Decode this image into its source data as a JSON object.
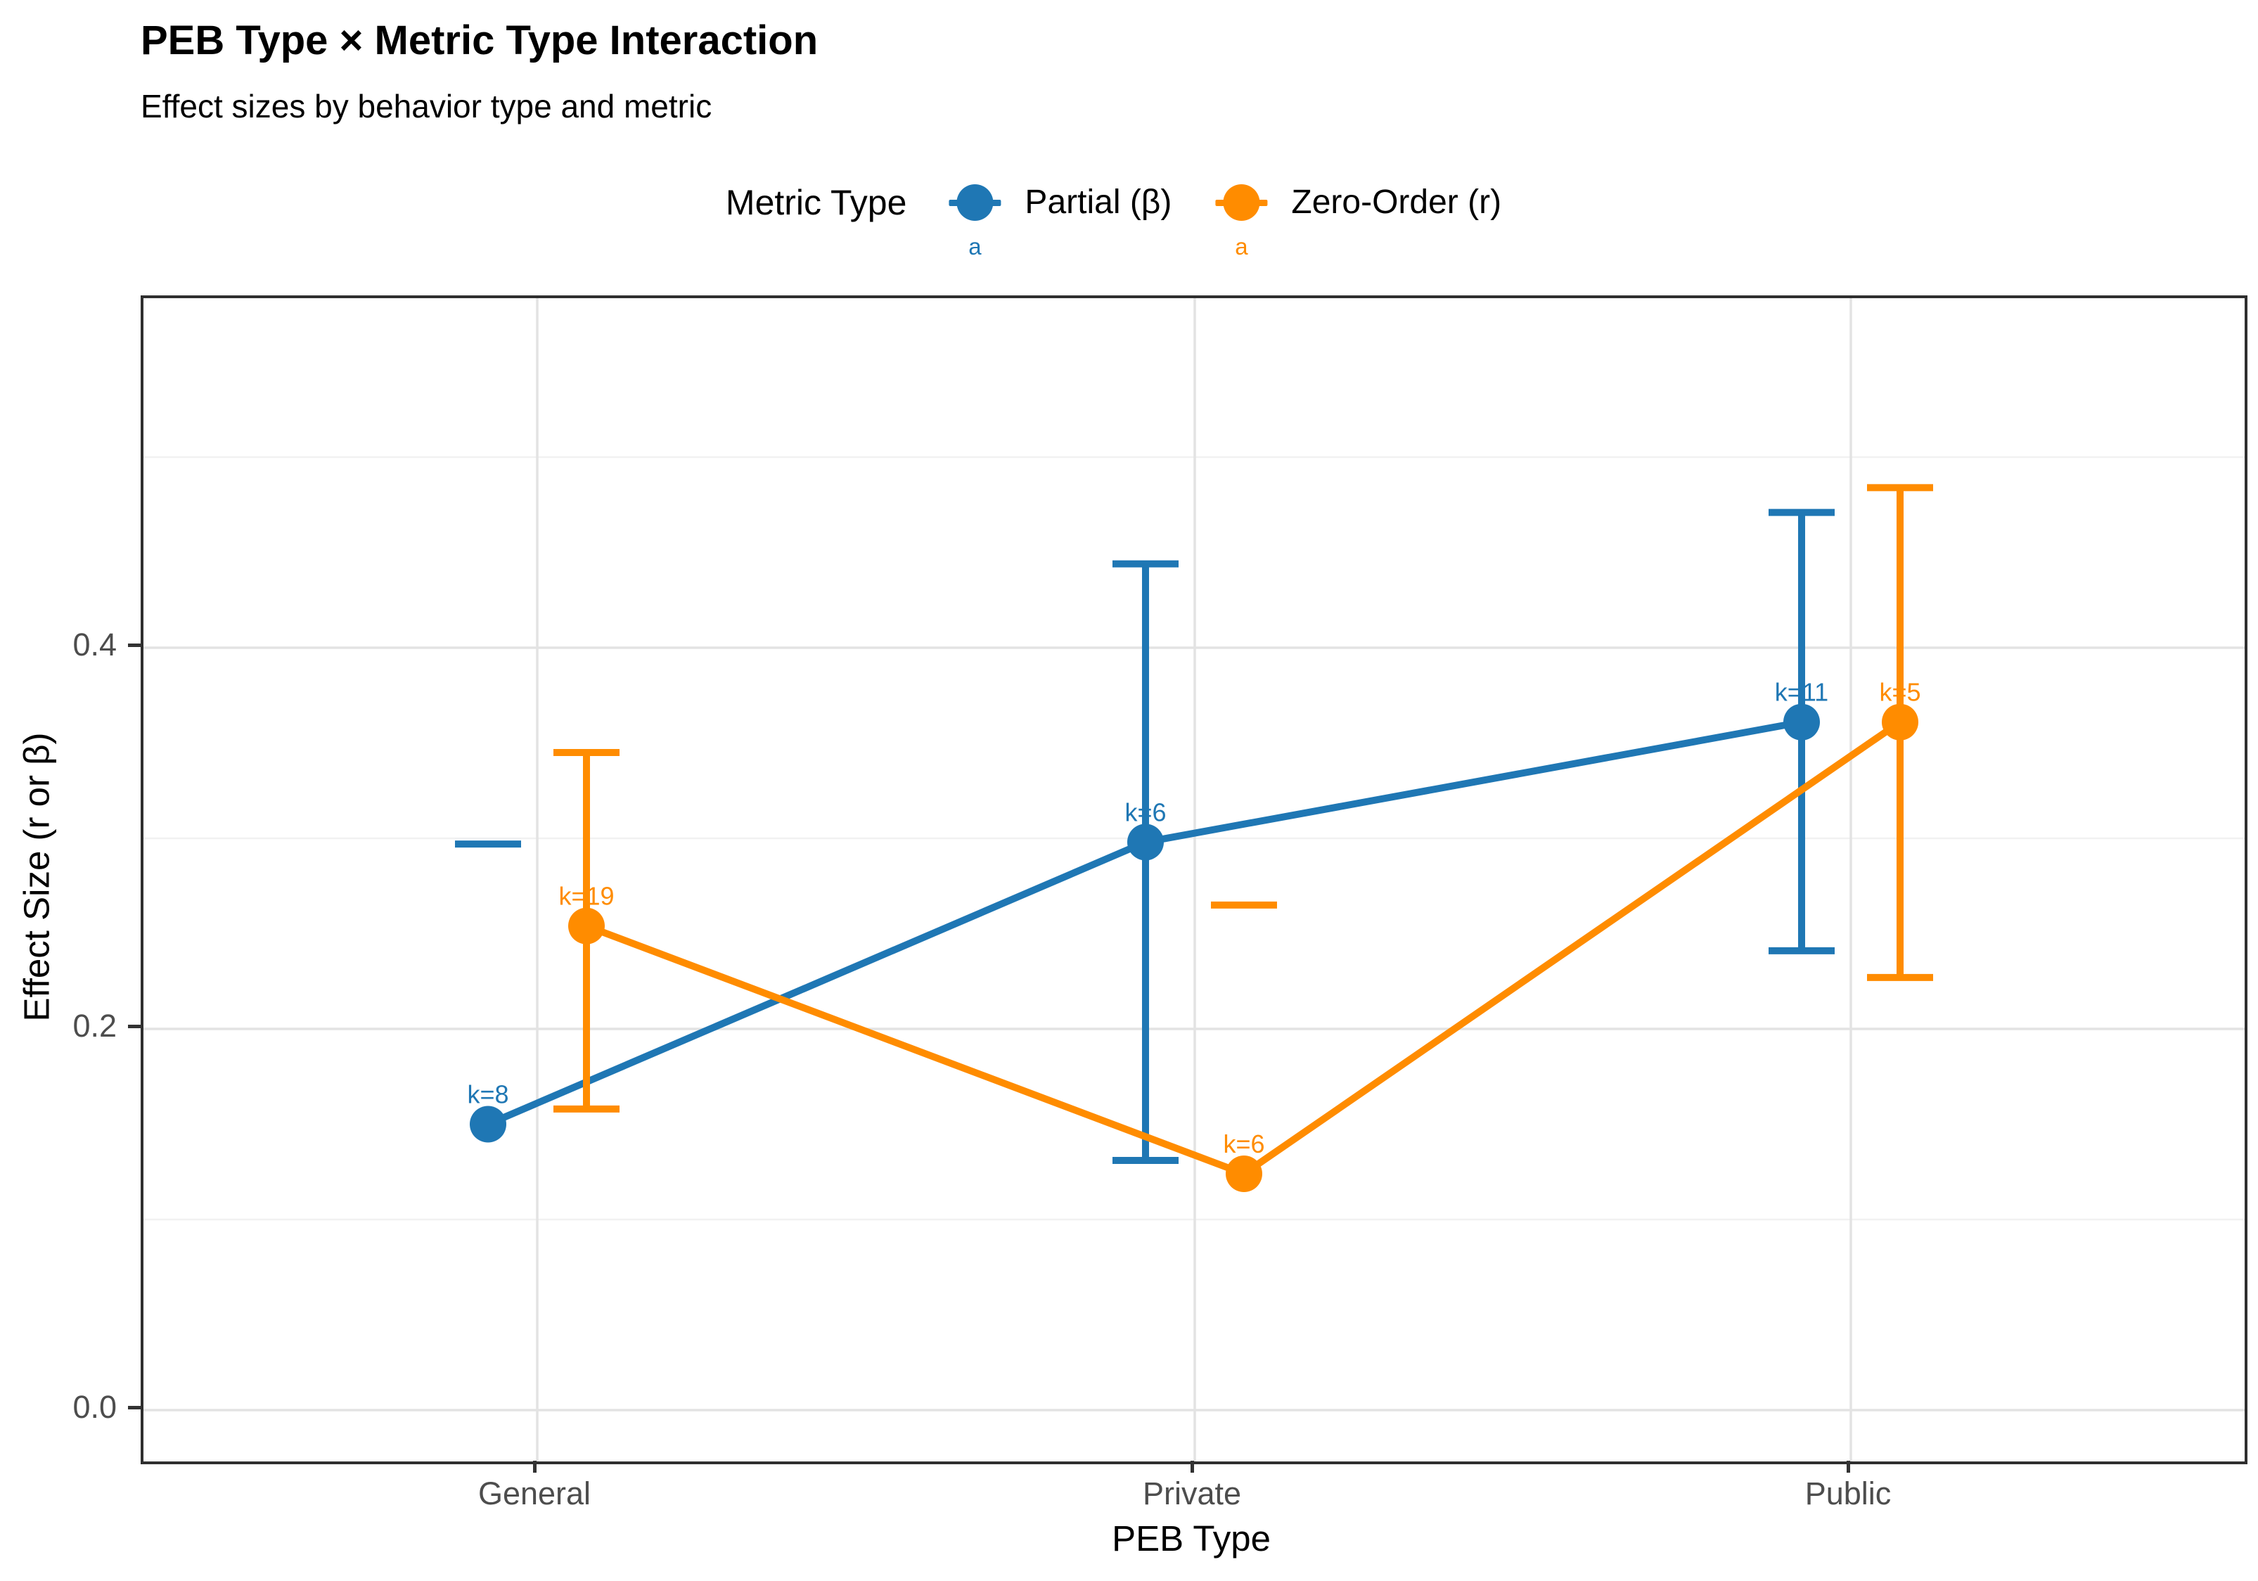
{
  "title": "PEB Type × Metric Type Interaction",
  "subtitle": "Effect sizes by behavior type and metric",
  "legend": {
    "title": "Metric Type",
    "entries": [
      {
        "label": "Partial (β)",
        "color": "#1F77B4",
        "key_letter": "a"
      },
      {
        "label": "Zero-Order (r)",
        "color": "#FF8C00",
        "key_letter": "a"
      }
    ]
  },
  "axes": {
    "x_title": "PEB Type",
    "y_title": "Effect Size (r or β)",
    "y_tick_labels": [
      "0.0",
      "0.2",
      "0.4"
    ]
  },
  "chart_data": {
    "type": "line",
    "title": "PEB Type × Metric Type Interaction",
    "subtitle": "Effect sizes by behavior type and metric",
    "xlabel": "PEB Type",
    "ylabel": "Effect Size (r or β)",
    "categories": [
      "General",
      "Private",
      "Public"
    ],
    "ylim": [
      -0.03,
      0.58
    ],
    "yticks": [
      0.0,
      0.2,
      0.4
    ],
    "yticks_minor": [
      0.1,
      0.3,
      0.5
    ],
    "grid": true,
    "legend_position": "top",
    "legend_title": "Metric Type",
    "series": [
      {
        "name": "Partial (β)",
        "color": "#1F77B4",
        "values": [
          0.15,
          0.298,
          0.361
        ],
        "ci_lower": [
          null,
          0.131,
          0.241
        ],
        "ci_upper": [
          null,
          0.444,
          0.471
        ],
        "dash_marker": [
          0.297,
          null,
          null
        ],
        "k_labels": [
          "k=8",
          "k=6",
          "k=11"
        ]
      },
      {
        "name": "Zero-Order (r)",
        "color": "#FF8C00",
        "values": [
          0.254,
          0.124,
          0.361
        ],
        "ci_lower": [
          0.158,
          null,
          0.227
        ],
        "ci_upper": [
          0.345,
          null,
          0.484
        ],
        "dash_marker": [
          null,
          0.265,
          null
        ],
        "k_labels": [
          "k=19",
          "k=6",
          "k=5"
        ]
      }
    ]
  }
}
